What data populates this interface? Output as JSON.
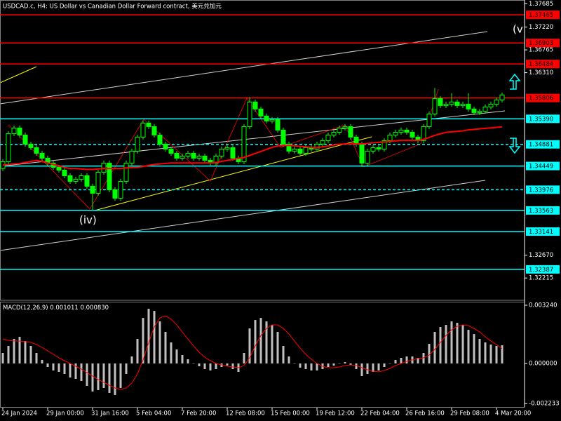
{
  "chart_data": [
    {
      "type": "candlestick",
      "title": "USDCAD.c, H4:  US Dollar vs Canadian Dollar Forward contract, 美元兑加元",
      "categories": [
        "24 Jan 2024",
        null,
        null,
        null,
        null,
        null,
        null,
        null,
        "29 Jan 00:00",
        null,
        null,
        null,
        null,
        null,
        null,
        null,
        "31 Jan 16:00",
        null,
        null,
        null,
        null,
        null,
        null,
        null,
        "5 Feb 04:00",
        null,
        null,
        null,
        null,
        null,
        null,
        null,
        "7 Feb 20:00",
        null,
        null,
        null,
        null,
        null,
        null,
        null,
        "12 Feb 08:00",
        null,
        null,
        null,
        null,
        null,
        null,
        null,
        "15 Feb 00:00",
        null,
        null,
        null,
        null,
        null,
        null,
        null,
        "19 Feb 12:00",
        null,
        null,
        null,
        null,
        null,
        null,
        null,
        "22 Feb 04:00",
        null,
        null,
        null,
        null,
        null,
        null,
        null,
        "26 Feb 16:00",
        null,
        null,
        null,
        null,
        null,
        null,
        null,
        "29 Feb 08:00",
        null,
        null,
        null,
        null,
        null,
        null,
        null,
        "4 Mar 20:00",
        null
      ],
      "open": [
        1.344,
        1.34535,
        1.35095,
        1.35207,
        1.35067,
        1.34885,
        1.34815,
        1.34703,
        1.34605,
        1.34507,
        1.34423,
        1.34367,
        1.34255,
        1.34143,
        1.34185,
        1.34255,
        1.34045,
        1.33905,
        1.34325,
        1.34507,
        1.33975,
        1.33807,
        1.34143,
        1.34507,
        1.34745,
        1.35025,
        1.35305,
        1.35235,
        1.35067,
        1.34885,
        1.34787,
        1.34703,
        1.34605,
        1.34647,
        1.34703,
        1.34605,
        1.34647,
        1.34563,
        1.34507,
        1.34647,
        1.34787,
        1.34815,
        1.34605,
        1.34535,
        1.35235,
        1.35725,
        1.35585,
        1.35445,
        1.35347,
        1.35375,
        1.35165,
        1.34885,
        1.34745,
        1.34787,
        1.34703,
        1.34815,
        1.34787,
        1.34885,
        1.34955,
        1.35067,
        1.35123,
        1.35207,
        1.35235,
        1.35025,
        1.34885,
        1.34507,
        1.34745,
        1.34815,
        1.34787,
        1.34955,
        1.35067,
        1.35123,
        1.35165,
        1.35123,
        1.35025,
        1.34955,
        1.35235,
        1.35487,
        1.35795,
        1.35655,
        1.35683,
        1.35725,
        1.35655,
        1.35683,
        1.35585,
        1.35515,
        1.35543,
        1.35627,
        1.35683,
        1.35767
      ],
      "high": [
        1.34585,
        1.35145,
        1.35257,
        1.35257,
        1.35117,
        1.34935,
        1.34865,
        1.34753,
        1.34655,
        1.34557,
        1.34473,
        1.34417,
        1.34305,
        1.34235,
        1.34305,
        1.34305,
        1.34095,
        1.34375,
        1.34557,
        1.34557,
        1.34025,
        1.34193,
        1.34557,
        1.34795,
        1.35075,
        1.35355,
        1.35355,
        1.35285,
        1.35117,
        1.34935,
        1.34837,
        1.34753,
        1.34697,
        1.34753,
        1.34753,
        1.34697,
        1.34697,
        1.34613,
        1.34697,
        1.34837,
        1.34865,
        1.34865,
        1.34655,
        1.35285,
        1.35823,
        1.35775,
        1.35635,
        1.35495,
        1.35425,
        1.35425,
        1.35215,
        1.34935,
        1.34837,
        1.34837,
        1.34865,
        1.34865,
        1.34935,
        1.35005,
        1.35117,
        1.35173,
        1.35257,
        1.35285,
        1.35285,
        1.35075,
        1.34935,
        1.34795,
        1.34865,
        1.34865,
        1.35005,
        1.35117,
        1.35173,
        1.35215,
        1.35215,
        1.35173,
        1.35075,
        1.35285,
        1.35537,
        1.36005,
        1.35845,
        1.35733,
        1.359,
        1.35775,
        1.35733,
        1.359,
        1.35635,
        1.35593,
        1.35677,
        1.35733,
        1.35817,
        1.35915
      ],
      "low": [
        1.3435,
        1.34485,
        1.35045,
        1.35017,
        1.34835,
        1.34765,
        1.34653,
        1.34555,
        1.34457,
        1.34373,
        1.34317,
        1.34205,
        1.34093,
        1.34093,
        1.34135,
        1.33995,
        1.3356,
        1.33855,
        1.34275,
        1.33925,
        1.33757,
        1.33757,
        1.34093,
        1.34457,
        1.34695,
        1.34975,
        1.35185,
        1.35017,
        1.34835,
        1.34737,
        1.34653,
        1.34555,
        1.34555,
        1.34597,
        1.34555,
        1.34555,
        1.34513,
        1.34457,
        1.34457,
        1.34597,
        1.34737,
        1.34555,
        1.34485,
        1.34485,
        1.35185,
        1.35535,
        1.35395,
        1.35297,
        1.35297,
        1.35115,
        1.34835,
        1.34695,
        1.34695,
        1.34653,
        1.34653,
        1.34737,
        1.34737,
        1.34835,
        1.34905,
        1.35017,
        1.35073,
        1.35157,
        1.34975,
        1.34835,
        1.3443,
        1.34457,
        1.34695,
        1.34737,
        1.34737,
        1.34905,
        1.35017,
        1.35073,
        1.35073,
        1.34975,
        1.34905,
        1.34905,
        1.35185,
        1.35437,
        1.35605,
        1.35605,
        1.35633,
        1.35605,
        1.35605,
        1.35535,
        1.35465,
        1.35465,
        1.35493,
        1.35577,
        1.35633,
        1.35717
      ],
      "close": [
        1.34535,
        1.35095,
        1.35207,
        1.35067,
        1.34885,
        1.34815,
        1.34703,
        1.34605,
        1.34507,
        1.34423,
        1.34367,
        1.34255,
        1.34143,
        1.34185,
        1.34255,
        1.34045,
        1.33905,
        1.34325,
        1.34507,
        1.33975,
        1.33807,
        1.34143,
        1.34507,
        1.34745,
        1.35025,
        1.35305,
        1.35235,
        1.35067,
        1.34885,
        1.34787,
        1.34703,
        1.34605,
        1.34647,
        1.34703,
        1.34605,
        1.34647,
        1.34563,
        1.34507,
        1.34647,
        1.34787,
        1.34815,
        1.34605,
        1.34535,
        1.35235,
        1.35725,
        1.35585,
        1.35445,
        1.35347,
        1.35375,
        1.35165,
        1.34885,
        1.34745,
        1.34787,
        1.34703,
        1.34815,
        1.34787,
        1.34885,
        1.34955,
        1.35067,
        1.35123,
        1.35207,
        1.35235,
        1.35025,
        1.34885,
        1.34507,
        1.34745,
        1.34815,
        1.34787,
        1.34955,
        1.35067,
        1.35123,
        1.35165,
        1.35123,
        1.35025,
        1.34955,
        1.35235,
        1.35487,
        1.35795,
        1.35655,
        1.35683,
        1.35725,
        1.35655,
        1.35683,
        1.35585,
        1.35515,
        1.35543,
        1.35627,
        1.35683,
        1.35767,
        1.35865
      ],
      "color": "#00ff00",
      "up_fill": "#000000",
      "overlay": {
        "color": "#ff0000",
        "values": [
          1.3447,
          1.3448,
          1.3449,
          1.345,
          1.3452,
          1.3454,
          1.3456,
          1.3454,
          1.3451,
          1.3448,
          1.3445,
          1.3442,
          1.344,
          1.344,
          1.3439,
          1.3438,
          1.3438,
          1.3439,
          1.344,
          1.344,
          1.344,
          1.344,
          1.3441,
          1.3442,
          1.3442,
          1.3444,
          1.3446,
          1.3448,
          1.3449,
          1.345,
          1.3451,
          1.3451,
          1.3451,
          1.3451,
          1.3451,
          1.3451,
          1.3451,
          1.3451,
          1.3452,
          1.3454,
          1.3456,
          1.3458,
          1.346,
          1.3462,
          1.3466,
          1.347,
          1.3474,
          1.3478,
          1.3482,
          1.3485,
          1.3486,
          1.3486,
          1.3485,
          1.3484,
          1.3483,
          1.3482,
          1.3482,
          1.3483,
          1.3485,
          1.3487,
          1.3488,
          1.3489,
          1.3489,
          1.3489,
          1.3489,
          1.349,
          1.3491,
          1.3492,
          1.3493,
          1.3494,
          1.3495,
          1.3496,
          1.3496,
          1.3496,
          1.3496,
          1.3498,
          1.3502,
          1.3506,
          1.3509,
          1.3512,
          1.3513,
          1.3514,
          1.3515,
          1.3517,
          1.3518,
          1.3519,
          1.352,
          1.3521,
          1.3522,
          1.3523
        ]
      },
      "ylim": [
        1.3177,
        1.3776
      ],
      "yticks": [
        1.37685,
        {
          "value": 1.3722,
          "label": "1.37220"
        },
        1.36765,
        {
          "value": 1.3631,
          "label": "1.36310"
        },
        {
          "value": 1.3267,
          "label": "1.32670"
        },
        1.32215
      ],
      "levels": [
        {
          "value": 1.37465,
          "color": "#ff0000"
        },
        {
          "value": 1.36903,
          "color": "#ff0000"
        },
        {
          "value": 1.36484,
          "color": "#ff0000"
        },
        {
          "value": 1.35806,
          "color": "#ff0000"
        },
        {
          "value": 1.3539,
          "label": "1.35390",
          "color": "#00ffff"
        },
        {
          "value": 1.34881,
          "color": "#00ffff",
          "dashed": true
        },
        {
          "value": 1.34449,
          "color": "#00ffff"
        },
        {
          "value": 1.33976,
          "color": "#00ffff",
          "dashed": true
        },
        {
          "value": 1.33563,
          "color": "#00ffff"
        },
        {
          "value": 1.33141,
          "color": "#00ffff"
        },
        {
          "value": 1.32387,
          "color": "#00ffff"
        }
      ],
      "annotations": [
        "(iv)",
        "(v"
      ]
    },
    {
      "type": "macd",
      "title": "MACD(12,26,9)",
      "readout": {
        "values": [
          0.001011,
          0.00083
        ],
        "value_labels": [
          "0.001011",
          "0.000830"
        ]
      },
      "histogram": {
        "color": "#c0c0c0",
        "values": [
          0.000585,
          0.000975,
          0.001365,
          0.001482,
          0.001248,
          0.000975,
          0.000585,
          0.000195,
          -0.000195,
          -0.00039,
          -0.000468,
          -0.000585,
          -0.00078,
          -0.000858,
          -0.000975,
          -0.001248,
          -0.00156,
          -0.001482,
          -0.001365,
          -0.001638,
          -0.001755,
          -0.001365,
          -0.000585,
          0.00039,
          0.001365,
          0.002535,
          0.003042,
          0.002925,
          0.00234,
          0.001755,
          0.00117,
          0.00078,
          0.000468,
          0.000234,
          0,
          -0.000156,
          -0.000312,
          -0.00039,
          -0.000312,
          -0.000195,
          -0.000117,
          -0.000312,
          -0.000468,
          0.000585,
          0.00195,
          0.002418,
          0.002535,
          0.00234,
          0.002145,
          0.001755,
          0.000975,
          0.00039,
          0,
          -0.000234,
          -0.000312,
          -0.00039,
          -0.00039,
          -0.000312,
          -0.000195,
          -0.000117,
          0,
          7.8e-05,
          -7.8e-05,
          -0.000312,
          -0.000702,
          -0.000585,
          -0.000468,
          -0.00039,
          -0.000195,
          0,
          0.000195,
          0.000312,
          0.00039,
          0.00039,
          0.000312,
          0.000585,
          0.001092,
          0.001755,
          0.002028,
          0.002145,
          0.00234,
          0.002262,
          0.002145,
          0.001872,
          0.001638,
          0.001365,
          0.00117,
          0.001053,
          0.000975,
          0.001011
        ]
      },
      "signal": {
        "color": "#ff0000",
        "values": [
          0.001365,
          0.001287,
          0.001248,
          0.001248,
          0.001209,
          0.00117,
          0.001053,
          0.000897,
          0.000702,
          0.000507,
          0.000312,
          0.000156,
          0,
          -0.000156,
          -0.000312,
          -0.000507,
          -0.000702,
          -0.000897,
          -0.001053,
          -0.001209,
          -0.001365,
          -0.001443,
          -0.001365,
          -0.001092,
          -0.000585,
          0.000195,
          0.00117,
          0.002028,
          0.002535,
          0.002652,
          0.002457,
          0.002145,
          0.001755,
          0.001365,
          0.000975,
          0.000624,
          0.000351,
          0.000156,
          0,
          -7.8e-05,
          -0.000156,
          -0.000195,
          -0.000234,
          -0.000117,
          0.000312,
          0.000975,
          0.00156,
          0.00195,
          0.002145,
          0.002145,
          0.00195,
          0.001638,
          0.001248,
          0.000858,
          0.000507,
          0.000234,
          0,
          -0.000156,
          -0.000234,
          -0.000234,
          -0.000195,
          -0.000117,
          -7.8e-05,
          -0.000117,
          -0.000234,
          -0.000351,
          -0.000429,
          -0.000468,
          -0.00039,
          -0.000273,
          -0.000117,
          0,
          0.000117,
          0.000195,
          0.000273,
          0.000312,
          0.000468,
          0.00078,
          0.00117,
          0.00156,
          0.001872,
          0.002067,
          0.002145,
          0.002106,
          0.00195,
          0.001755,
          0.001482,
          0.001248,
          0.001053,
          0.00083
        ]
      },
      "ylim": [
        -0.00242,
        0.003435
      ],
      "yticks": [
        {
          "value": 0.00324,
          "label": "0.003240"
        },
        {
          "value": 0,
          "label": "0.000000"
        },
        {
          "value": -0.002233,
          "label": "-0.002233"
        }
      ]
    }
  ]
}
